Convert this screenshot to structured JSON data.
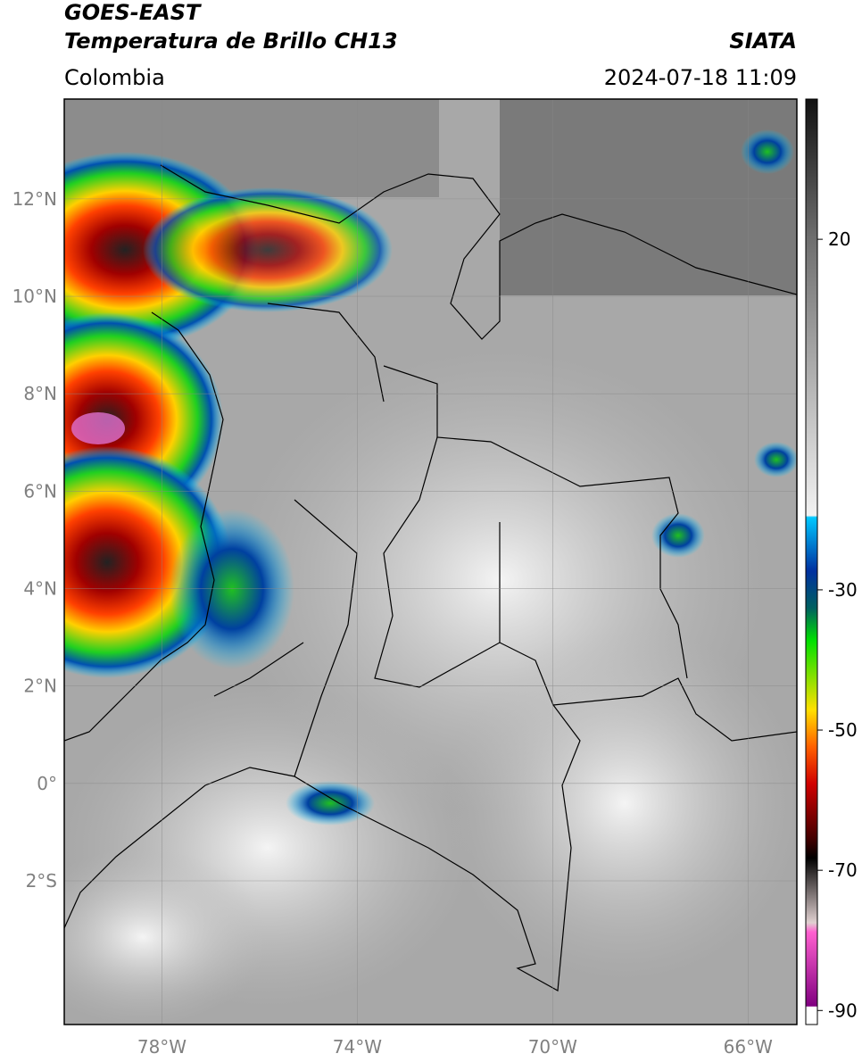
{
  "header": {
    "satellite": "GOES-EAST",
    "product": "Temperatura de Brillo CH13",
    "source": "SIATA",
    "region": "Colombia",
    "datetime": "2024-07-18 11:09"
  },
  "map": {
    "lon_range": [
      -80,
      -65
    ],
    "lat_range": [
      -4.95,
      14.05
    ],
    "lon_ticks": [
      {
        "value": -78,
        "label": "78°W"
      },
      {
        "value": -74,
        "label": "74°W"
      },
      {
        "value": -70,
        "label": "70°W"
      },
      {
        "value": -66,
        "label": "66°W"
      }
    ],
    "lat_ticks": [
      {
        "value": 12,
        "label": "12°N"
      },
      {
        "value": 10,
        "label": "10°N"
      },
      {
        "value": 8,
        "label": "8°N"
      },
      {
        "value": 6,
        "label": "6°N"
      },
      {
        "value": 4,
        "label": "4°N"
      },
      {
        "value": 2,
        "label": "2°N"
      },
      {
        "value": 0,
        "label": "0°"
      },
      {
        "value": -2,
        "label": "2°S"
      }
    ]
  },
  "colorbar": {
    "range": [
      -92,
      40
    ],
    "ticks": [
      20,
      -30,
      -50,
      -70,
      -90
    ]
  }
}
